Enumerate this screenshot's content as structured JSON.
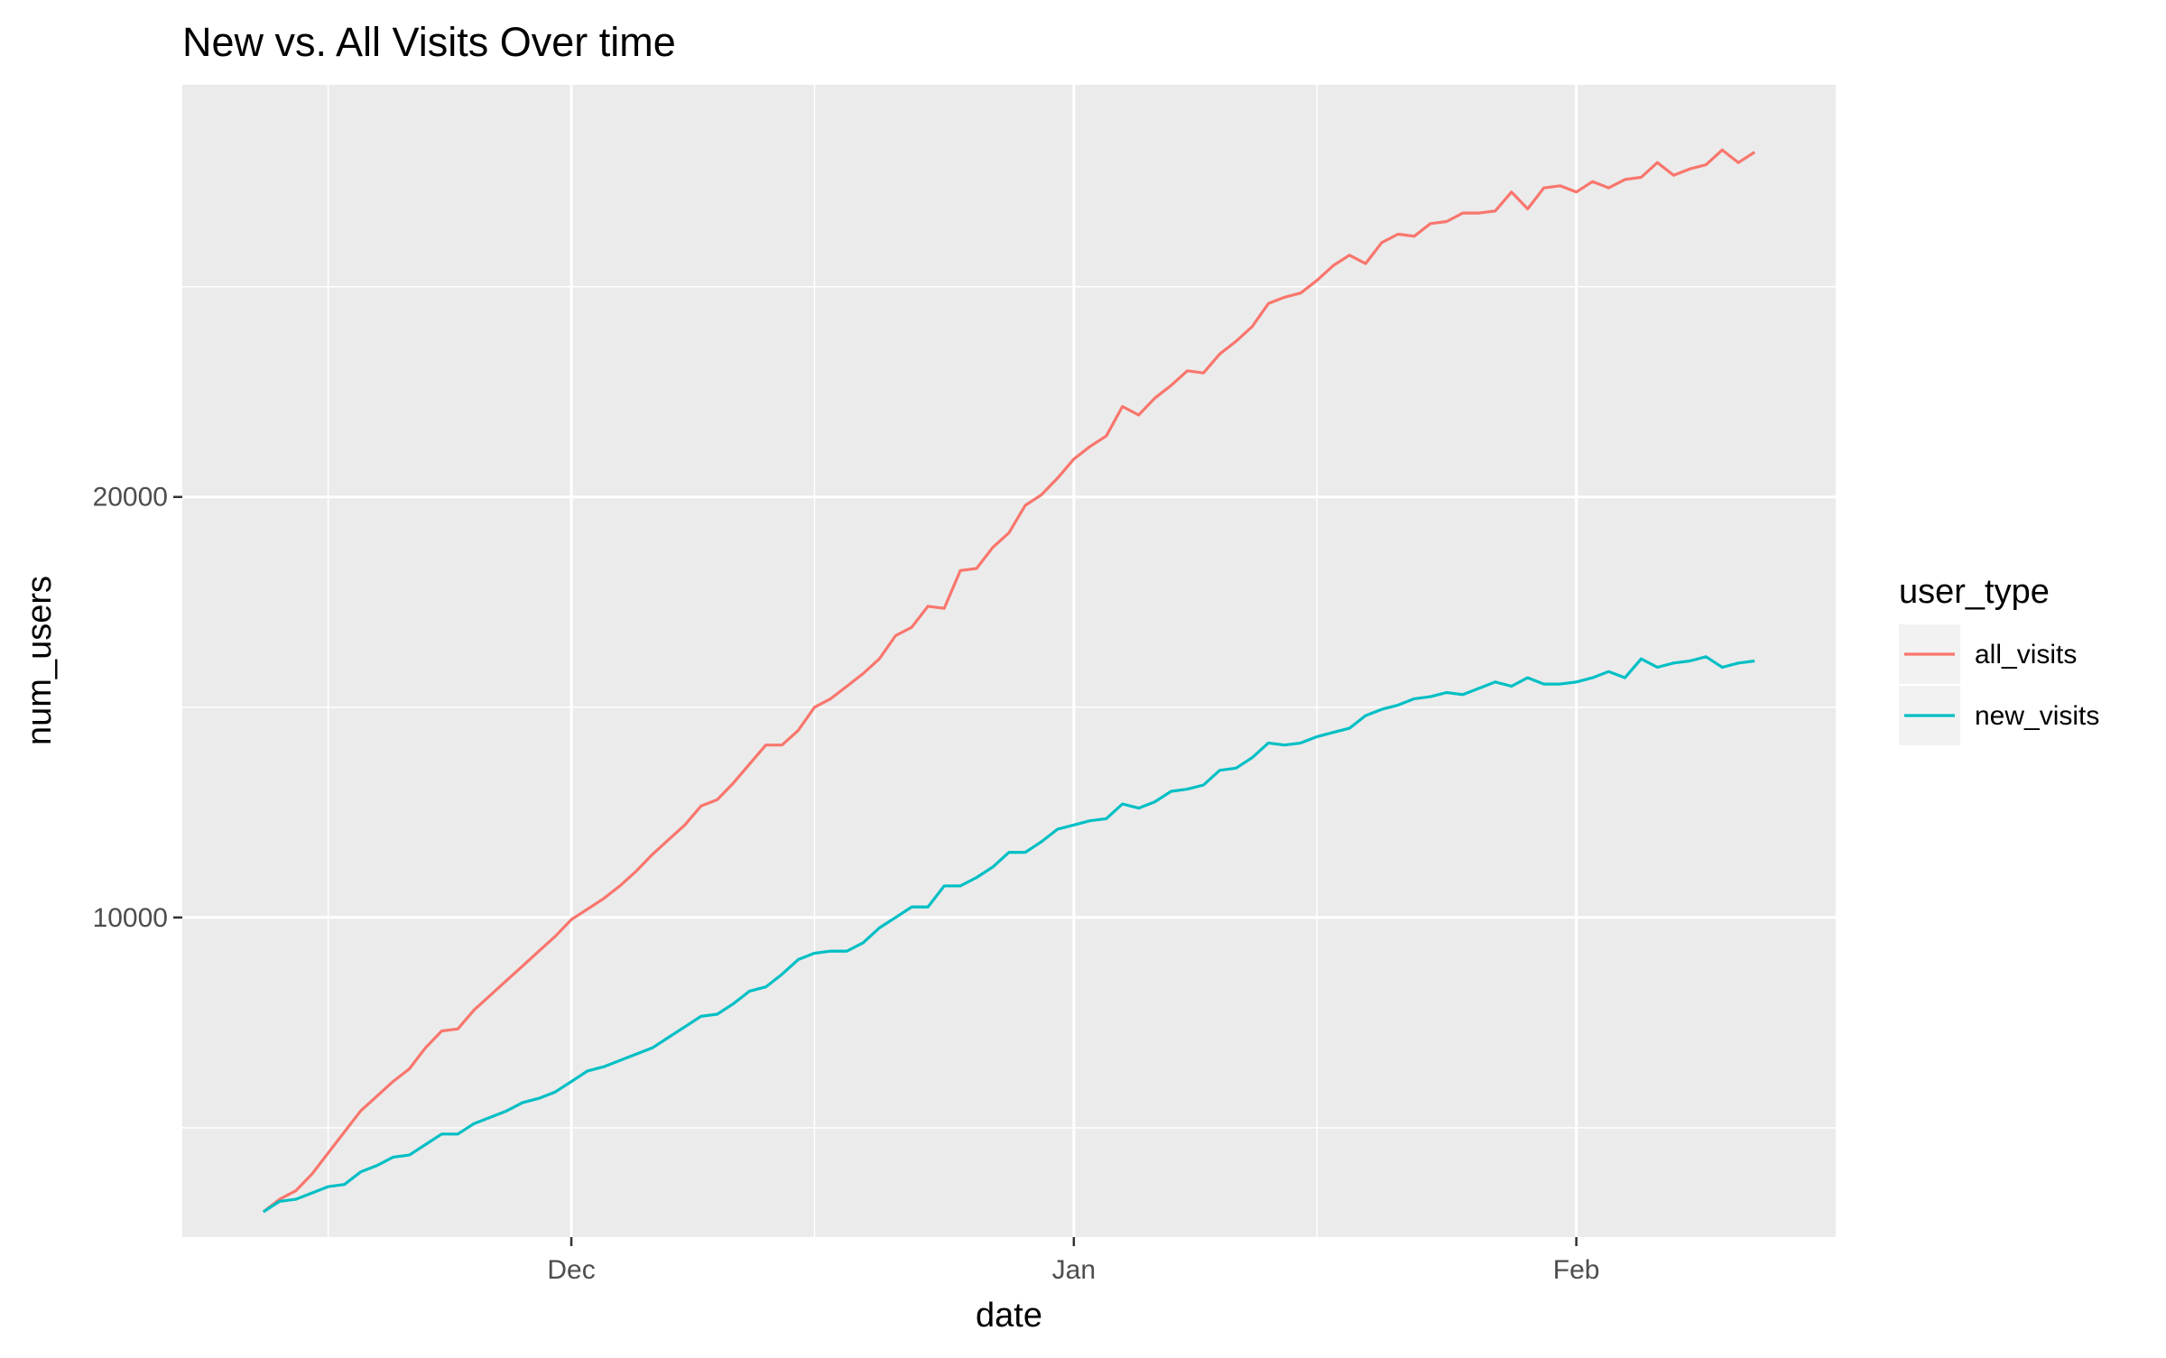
{
  "chart_data": {
    "type": "line",
    "title": "New vs. All Visits Over time",
    "xlabel": "date",
    "ylabel": "num_users",
    "x_ticks": [
      {
        "label": "Dec",
        "value": "2019-12-01"
      },
      {
        "label": "Jan",
        "value": "2020-01-01"
      },
      {
        "label": "Feb",
        "value": "2020-02-01"
      }
    ],
    "x_minor_ticks": [
      "2019-11-16",
      "2019-12-16",
      "2020-01-16"
    ],
    "xlim": [
      "2019-11-07",
      "2020-02-17"
    ],
    "y_ticks": [
      {
        "label": "10000",
        "value": 10000
      },
      {
        "label": "20000",
        "value": 20000
      }
    ],
    "y_minor_ticks": [
      5000,
      15000,
      25000
    ],
    "ylim": [
      2400,
      29800
    ],
    "grid": true,
    "legend": {
      "title": "user_type",
      "position": "right"
    },
    "x": [
      "2019-11-12",
      "2019-11-13",
      "2019-11-14",
      "2019-11-15",
      "2019-11-16",
      "2019-11-17",
      "2019-11-18",
      "2019-11-19",
      "2019-11-20",
      "2019-11-21",
      "2019-11-22",
      "2019-11-23",
      "2019-11-24",
      "2019-11-25",
      "2019-11-26",
      "2019-11-27",
      "2019-11-28",
      "2019-11-29",
      "2019-11-30",
      "2019-12-01",
      "2019-12-02",
      "2019-12-03",
      "2019-12-04",
      "2019-12-05",
      "2019-12-06",
      "2019-12-07",
      "2019-12-08",
      "2019-12-09",
      "2019-12-10",
      "2019-12-11",
      "2019-12-12",
      "2019-12-13",
      "2019-12-14",
      "2019-12-15",
      "2019-12-16",
      "2019-12-17",
      "2019-12-18",
      "2019-12-19",
      "2019-12-20",
      "2019-12-21",
      "2019-12-22",
      "2019-12-23",
      "2019-12-24",
      "2019-12-25",
      "2019-12-26",
      "2019-12-27",
      "2019-12-28",
      "2019-12-29",
      "2019-12-30",
      "2019-12-31",
      "2020-01-01",
      "2020-01-02",
      "2020-01-03",
      "2020-01-04",
      "2020-01-05",
      "2020-01-06",
      "2020-01-07",
      "2020-01-08",
      "2020-01-09",
      "2020-01-10",
      "2020-01-11",
      "2020-01-12",
      "2020-01-13",
      "2020-01-14",
      "2020-01-15",
      "2020-01-16",
      "2020-01-17",
      "2020-01-18",
      "2020-01-19",
      "2020-01-20",
      "2020-01-21",
      "2020-01-22",
      "2020-01-23",
      "2020-01-24",
      "2020-01-25",
      "2020-01-26",
      "2020-01-27",
      "2020-01-28",
      "2020-01-29",
      "2020-01-30",
      "2020-01-31",
      "2020-02-01",
      "2020-02-02",
      "2020-02-03",
      "2020-02-04",
      "2020-02-05",
      "2020-02-06",
      "2020-02-07",
      "2020-02-08",
      "2020-02-09",
      "2020-02-10",
      "2020-02-11",
      "2020-02-12"
    ],
    "series": [
      {
        "name": "all_visits",
        "color": "#F8766D",
        "values": [
          3000,
          3300,
          3500,
          3900,
          4400,
          4900,
          5400,
          5750,
          6100,
          6400,
          6900,
          7300,
          7350,
          7800,
          8150,
          8500,
          8850,
          9200,
          9550,
          9950,
          10200,
          10450,
          10750,
          11100,
          11500,
          11850,
          12200,
          12650,
          12800,
          13200,
          13650,
          14100,
          14100,
          14450,
          15000,
          15200,
          15500,
          15800,
          16150,
          16700,
          16900,
          17400,
          17350,
          18250,
          18300,
          18800,
          19150,
          19800,
          20050,
          20450,
          20900,
          21200,
          21450,
          22150,
          21950,
          22350,
          22650,
          23000,
          22950,
          23400,
          23700,
          24050,
          24600,
          24750,
          24850,
          25150,
          25500,
          25750,
          25550,
          26050,
          26250,
          26200,
          26500,
          26550,
          26750,
          26750,
          26800,
          27250,
          26850,
          27350,
          27400,
          27250,
          27500,
          27350,
          27550,
          27600,
          27950,
          27650,
          27800,
          27900,
          28250,
          27950,
          28200
        ]
      },
      {
        "name": "new_visits",
        "color": "#00BFC4",
        "values": [
          3000,
          3250,
          3300,
          3450,
          3600,
          3650,
          3950,
          4100,
          4300,
          4350,
          4600,
          4850,
          4850,
          5100,
          5250,
          5400,
          5600,
          5700,
          5850,
          6100,
          6350,
          6450,
          6600,
          6750,
          6900,
          7150,
          7400,
          7650,
          7700,
          7950,
          8250,
          8350,
          8650,
          9000,
          9150,
          9200,
          9200,
          9400,
          9750,
          10000,
          10250,
          10250,
          10750,
          10750,
          10950,
          11200,
          11550,
          11550,
          11800,
          12100,
          12200,
          12300,
          12350,
          12700,
          12600,
          12750,
          13000,
          13050,
          13150,
          13500,
          13550,
          13800,
          14150,
          14100,
          14150,
          14300,
          14400,
          14500,
          14800,
          14950,
          15050,
          15200,
          15250,
          15350,
          15300,
          15450,
          15600,
          15500,
          15700,
          15550,
          15550,
          15600,
          15700,
          15850,
          15700,
          16150,
          15950,
          16050,
          16100,
          16200,
          15950,
          16050,
          16100
        ]
      }
    ]
  }
}
